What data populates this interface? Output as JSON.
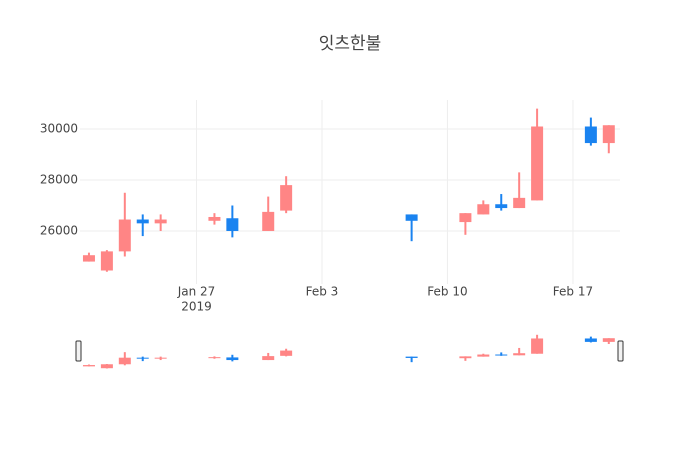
{
  "chart_data": {
    "type": "candlestick",
    "title": "잇츠한불",
    "x": [
      "2019-01-21",
      "2019-01-22",
      "2019-01-23",
      "2019-01-24",
      "2019-01-25",
      "2019-01-28",
      "2019-01-29",
      "2019-01-31",
      "2019-02-01",
      "2019-02-08",
      "2019-02-11",
      "2019-02-12",
      "2019-02-13",
      "2019-02-14",
      "2019-02-15",
      "2019-02-18",
      "2019-02-19"
    ],
    "open": [
      24800,
      24450,
      25200,
      26450,
      26300,
      26400,
      26500,
      26000,
      26800,
      26650,
      26350,
      26650,
      27050,
      26900,
      27200,
      30100,
      29450
    ],
    "high": [
      25150,
      25250,
      27500,
      26650,
      26650,
      26700,
      27000,
      27350,
      28150,
      26650,
      26700,
      27200,
      27450,
      28300,
      30800,
      30450,
      30150
    ],
    "low": [
      24800,
      24400,
      25000,
      25800,
      26000,
      26250,
      25750,
      26000,
      26700,
      25600,
      25850,
      26650,
      26800,
      26900,
      27200,
      29350,
      29050
    ],
    "close": [
      25050,
      25200,
      26450,
      26300,
      26450,
      26550,
      26000,
      26750,
      27800,
      26400,
      26700,
      27050,
      26900,
      27300,
      30100,
      29450,
      30150
    ],
    "increasing_color": "#ff8585",
    "decreasing_color": "#1a83f0",
    "xlim": [
      "2019-01-20T12:00",
      "2019-02-19T15:00"
    ],
    "xticks": [
      {
        "value": "2019-01-27",
        "label": "Jan 27"
      },
      {
        "value": "2019-02-03",
        "label": "Feb 3"
      },
      {
        "value": "2019-02-10",
        "label": "Feb 10"
      },
      {
        "value": "2019-02-17",
        "label": "Feb 17"
      }
    ],
    "x_year_label": "2019",
    "ylim": [
      23920,
      31140
    ],
    "yticks": [
      26000,
      28000,
      30000
    ],
    "grid": true,
    "rangeslider": true
  }
}
